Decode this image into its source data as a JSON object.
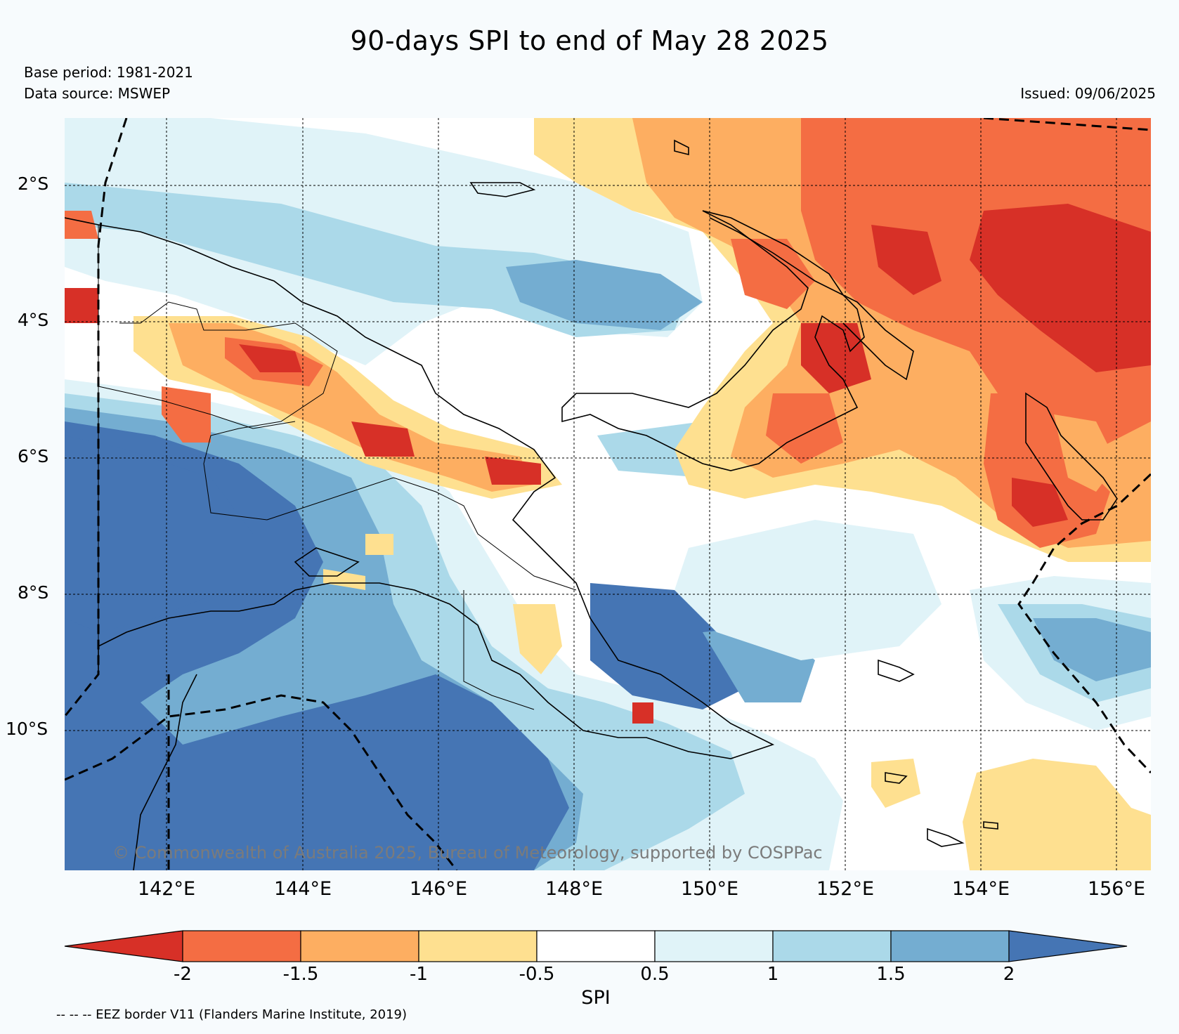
{
  "header": {
    "title": "90-days SPI to end of May 28 2025",
    "base_period": "Base period: 1981-2021",
    "data_source": "Data source: MSWEP",
    "issued": "Issued: 09/06/2025"
  },
  "map": {
    "lat_labels": [
      "2°S",
      "4°S",
      "6°S",
      "8°S",
      "10°S"
    ],
    "lon_labels": [
      "142°E",
      "144°E",
      "146°E",
      "148°E",
      "150°E",
      "152°E",
      "154°E",
      "156°E"
    ],
    "watermark": "© Commonwealth of Australia 2025, Bureau of Meteorology, supported by COSPPac"
  },
  "colorbar": {
    "title": "SPI",
    "ticks": [
      "-2",
      "-1.5",
      "-1",
      "-0.5",
      "0.5",
      "1",
      "1.5",
      "2"
    ],
    "colors": [
      "#d73027",
      "#f46d43",
      "#fdae61",
      "#fee090",
      "#ffffff",
      "#e0f3f8",
      "#abd9e9",
      "#74add1",
      "#4575b4"
    ]
  },
  "footer": {
    "eez_note": "-- -- -- EEZ border V11 (Flanders Marine Institute, 2019)"
  }
}
